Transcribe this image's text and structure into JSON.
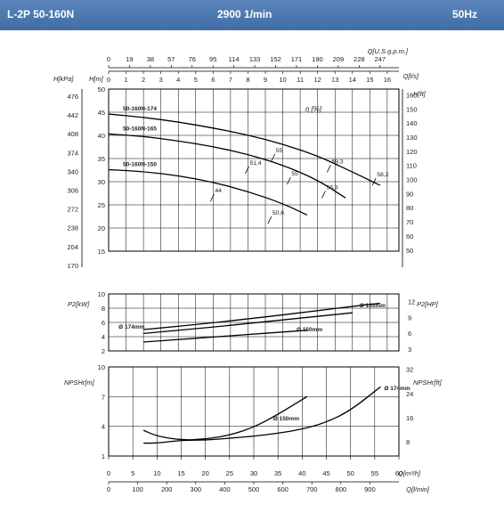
{
  "header": {
    "model": "L-2P 50-160N",
    "speed": "2900 1/min",
    "frequency": "50Hz"
  },
  "colors": {
    "header_bg": "#4a78b0",
    "curve": "#000000",
    "grid": "#000000"
  },
  "flow_axes": {
    "usgpm": {
      "label": "Q[U.S.g.p.m.]",
      "ticks": [
        "0",
        "19",
        "38",
        "57",
        "76",
        "95",
        "114",
        "133",
        "152",
        "171",
        "190",
        "209",
        "228",
        "247"
      ]
    },
    "ls": {
      "label": "Q[l/s]",
      "ticks": [
        "0",
        "1",
        "2",
        "3",
        "4",
        "5",
        "6",
        "7",
        "8",
        "9",
        "10",
        "11",
        "12",
        "13",
        "14",
        "15",
        "16"
      ]
    },
    "m3h": {
      "label": "Q[m³/h]",
      "ticks": [
        "0",
        "5",
        "10",
        "15",
        "20",
        "25",
        "30",
        "35",
        "40",
        "45",
        "50",
        "55",
        "60"
      ]
    },
    "lmin": {
      "label": "Q[l/min]",
      "ticks": [
        "0",
        "100",
        "200",
        "300",
        "400",
        "500",
        "600",
        "700",
        "800",
        "900"
      ]
    }
  },
  "head_axes": {
    "kpa": {
      "label": "H[kPa]",
      "ticks": [
        "476",
        "442",
        "408",
        "374",
        "340",
        "306",
        "272",
        "238",
        "204",
        "170"
      ]
    },
    "m": {
      "label": "H[m]",
      "ticks": [
        "50",
        "45",
        "40",
        "35",
        "30",
        "25",
        "20",
        "15"
      ]
    },
    "ft": {
      "label": "H[ft]",
      "ticks": [
        "160",
        "150",
        "140",
        "130",
        "120",
        "110",
        "100",
        "90",
        "80",
        "70",
        "60",
        "50"
      ]
    },
    "efficiency_label": "η [%]"
  },
  "power_axes": {
    "kw": {
      "label": "P2[kW]",
      "ticks": [
        "10",
        "8",
        "6",
        "4",
        "2"
      ]
    },
    "hp": {
      "label": "P2[HP]",
      "ticks": [
        "12",
        "9",
        "6",
        "3"
      ]
    }
  },
  "npsh_axes": {
    "m": {
      "label": "NPSHr[m]",
      "ticks": [
        "10",
        "7",
        "4",
        "1"
      ]
    },
    "ft": {
      "label": "NPSHr[ft]",
      "ticks": [
        "32",
        "24",
        "16",
        "8"
      ]
    }
  },
  "chart_data": [
    {
      "type": "line",
      "title": "",
      "xlabel": "Q[l/s]",
      "ylabel": "H[m]",
      "xlim": [
        0,
        16.67
      ],
      "ylim": [
        15,
        50
      ],
      "series": [
        {
          "name": "50-160N-174",
          "x": [
            0,
            2,
            4,
            6,
            8,
            10,
            12,
            14,
            15.6
          ],
          "y": [
            44.6,
            43.9,
            42.9,
            41.6,
            40.1,
            38.1,
            35.6,
            32.1,
            29.2
          ]
        },
        {
          "name": "50-160N-165",
          "x": [
            0,
            2,
            4,
            6,
            8,
            10,
            12,
            13.6
          ],
          "y": [
            40.3,
            39.8,
            38.8,
            37.6,
            35.9,
            33.6,
            30.4,
            26.5
          ]
        },
        {
          "name": "50-160N-150",
          "x": [
            0,
            2,
            4,
            6,
            8,
            10,
            11.4
          ],
          "y": [
            32.6,
            32.2,
            31.3,
            29.9,
            27.9,
            25.3,
            22.8
          ]
        }
      ],
      "efficiency_labels": [
        {
          "text": "55",
          "x": 9.5,
          "y": 35.6
        },
        {
          "text": "59,3",
          "x": 12.7,
          "y": 33.2
        },
        {
          "text": "58,2",
          "x": 15.3,
          "y": 30.4
        },
        {
          "text": "51,4",
          "x": 8.0,
          "y": 32.9
        },
        {
          "text": "55",
          "x": 10.4,
          "y": 30.6
        },
        {
          "text": "56,3",
          "x": 12.4,
          "y": 27.6
        },
        {
          "text": "44",
          "x": 6.0,
          "y": 26.9
        },
        {
          "text": "50,6",
          "x": 9.3,
          "y": 22.1
        }
      ]
    },
    {
      "type": "line",
      "title": "",
      "xlabel": "Q[l/s]",
      "ylabel": "P2[kW]",
      "xlim": [
        0,
        16.67
      ],
      "ylim": [
        2,
        10
      ],
      "series": [
        {
          "name": "Ø 174mm",
          "x": [
            2,
            4,
            6,
            8,
            10,
            12,
            14,
            15.6
          ],
          "y": [
            5.0,
            5.45,
            5.95,
            6.5,
            7.05,
            7.65,
            8.25,
            8.7
          ]
        },
        {
          "name": "Ø 165mm",
          "x": [
            2,
            4,
            6,
            8,
            10,
            12,
            14
          ],
          "y": [
            4.45,
            4.9,
            5.35,
            5.85,
            6.35,
            6.85,
            7.35
          ]
        },
        {
          "name": "Ø 150mm",
          "x": [
            2,
            4,
            6,
            8,
            10,
            11.4
          ],
          "y": [
            3.25,
            3.6,
            3.95,
            4.3,
            4.65,
            4.9
          ]
        }
      ]
    },
    {
      "type": "line",
      "title": "",
      "xlabel": "Q[m³/h]",
      "ylabel": "NPSHr[m]",
      "xlim": [
        0,
        60
      ],
      "ylim": [
        1,
        10
      ],
      "series": [
        {
          "name": "Ø 174mm",
          "x": [
            7.2,
            10,
            15,
            20,
            25,
            30,
            35,
            40,
            45,
            50,
            56.2
          ],
          "y": [
            2.3,
            2.3,
            2.6,
            2.6,
            2.8,
            3.0,
            3.3,
            3.7,
            4.4,
            5.6,
            8.0
          ]
        },
        {
          "name": "Ø 150mm",
          "x": [
            7.2,
            10,
            15,
            20,
            25,
            30,
            35,
            41
          ],
          "y": [
            3.6,
            3.0,
            2.6,
            2.7,
            3.1,
            3.9,
            5.2,
            7.0
          ]
        }
      ]
    }
  ]
}
